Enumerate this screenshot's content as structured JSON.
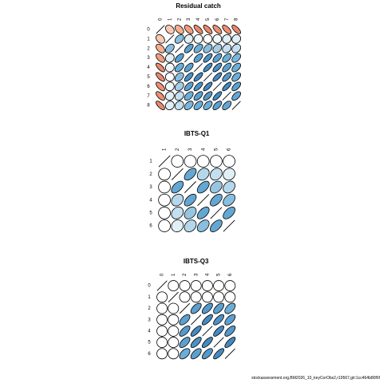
{
  "footer": "stockassessment.org,BM2026_10_keyCorObs2,r19567,git:1cc464b80f6f",
  "chart_data": [
    {
      "type": "heatmap",
      "title": "Residual catch",
      "labels": [
        "0",
        "1",
        "2",
        "3",
        "4",
        "5",
        "6",
        "7",
        "8"
      ],
      "lower_triangle_symmetric": true,
      "matrix": [
        [
          1.0,
          -0.3,
          -0.45,
          -0.55,
          -0.7,
          -0.7,
          -0.65,
          -0.65,
          -0.7
        ],
        [
          -0.3,
          1.0,
          0.4,
          0.1,
          0.05,
          0.0,
          0.05,
          0.1,
          0.1
        ],
        [
          -0.45,
          0.4,
          1.0,
          0.6,
          0.5,
          0.4,
          0.3,
          0.2,
          0.2
        ],
        [
          -0.55,
          0.1,
          0.6,
          1.0,
          0.6,
          0.7,
          0.6,
          0.5,
          0.45
        ],
        [
          -0.7,
          0.05,
          0.5,
          0.6,
          1.0,
          0.75,
          0.7,
          0.6,
          0.5
        ],
        [
          -0.7,
          0.0,
          0.4,
          0.7,
          0.75,
          1.0,
          0.75,
          0.65,
          0.5
        ],
        [
          -0.65,
          0.05,
          0.3,
          0.6,
          0.7,
          0.75,
          1.0,
          0.75,
          0.6
        ],
        [
          -0.65,
          0.1,
          0.2,
          0.5,
          0.6,
          0.65,
          0.75,
          1.0,
          0.55
        ],
        [
          -0.7,
          0.1,
          0.2,
          0.45,
          0.5,
          0.5,
          0.6,
          0.55,
          1.0
        ]
      ]
    },
    {
      "type": "heatmap",
      "title": "IBTS-Q1",
      "labels": [
        "1",
        "2",
        "3",
        "4",
        "5",
        "6"
      ],
      "lower_triangle_symmetric": true,
      "matrix": [
        [
          1.0,
          0.0,
          0.0,
          0.0,
          0.0,
          0.0
        ],
        [
          0.0,
          1.0,
          0.55,
          0.25,
          0.2,
          0.1
        ],
        [
          0.0,
          0.55,
          1.0,
          0.55,
          0.35,
          0.25
        ],
        [
          0.0,
          0.25,
          0.55,
          1.0,
          0.55,
          0.4
        ],
        [
          0.0,
          0.2,
          0.35,
          0.55,
          1.0,
          0.55
        ],
        [
          0.0,
          0.1,
          0.25,
          0.4,
          0.55,
          1.0
        ]
      ]
    },
    {
      "type": "heatmap",
      "title": "IBTS-Q3",
      "labels": [
        "0",
        "1",
        "2",
        "3",
        "4",
        "5",
        "6"
      ],
      "lower_triangle_symmetric": true,
      "matrix": [
        [
          1.0,
          0.0,
          0.0,
          0.0,
          0.0,
          0.0,
          0.0
        ],
        [
          0.0,
          1.0,
          0.0,
          0.0,
          0.0,
          0.0,
          0.0
        ],
        [
          0.0,
          0.0,
          1.0,
          0.6,
          0.65,
          0.6,
          0.5
        ],
        [
          0.0,
          0.0,
          0.6,
          1.0,
          0.75,
          0.7,
          0.6
        ],
        [
          0.0,
          0.0,
          0.65,
          0.75,
          1.0,
          0.75,
          0.65
        ],
        [
          0.0,
          0.0,
          0.6,
          0.7,
          0.75,
          1.0,
          0.75
        ],
        [
          0.0,
          0.0,
          0.5,
          0.6,
          0.65,
          0.75,
          1.0
        ]
      ]
    }
  ]
}
